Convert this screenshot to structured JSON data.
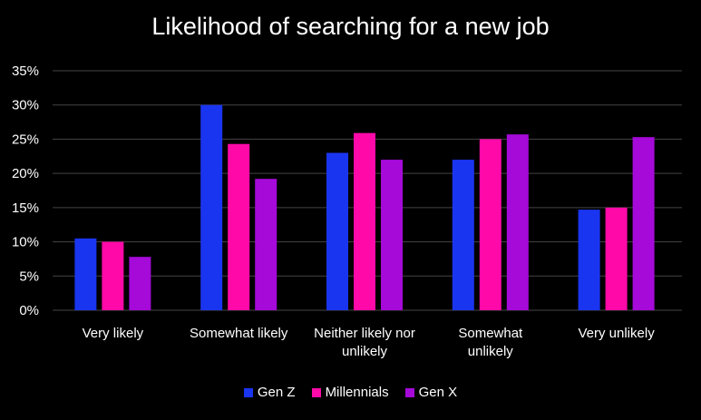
{
  "chart_data": {
    "type": "bar",
    "title": "Likelihood of searching for a new job",
    "categories": [
      [
        "Very likely"
      ],
      [
        "Somewhat likely"
      ],
      [
        "Neither likely nor",
        "unlikely"
      ],
      [
        "Somewhat",
        "unlikely"
      ],
      [
        "Very unlikely"
      ]
    ],
    "series": [
      {
        "name": "Gen Z",
        "color": "#1a35f0",
        "values": [
          10.5,
          30,
          23,
          22,
          14.7
        ]
      },
      {
        "name": "Millennials",
        "color": "#ff0aa8",
        "values": [
          10,
          24.3,
          25.9,
          25,
          15
        ]
      },
      {
        "name": "Gen X",
        "color": "#a50ad8",
        "values": [
          7.8,
          19.2,
          22,
          25.7,
          25.3
        ]
      }
    ],
    "ylim": [
      0,
      35
    ],
    "yticks": [
      0,
      5,
      10,
      15,
      20,
      25,
      30,
      35
    ],
    "ytick_labels": [
      "0%",
      "5%",
      "10%",
      "15%",
      "20%",
      "25%",
      "30%",
      "35%"
    ],
    "grid": true,
    "legend": "bottom",
    "xlabel": "",
    "ylabel": ""
  }
}
